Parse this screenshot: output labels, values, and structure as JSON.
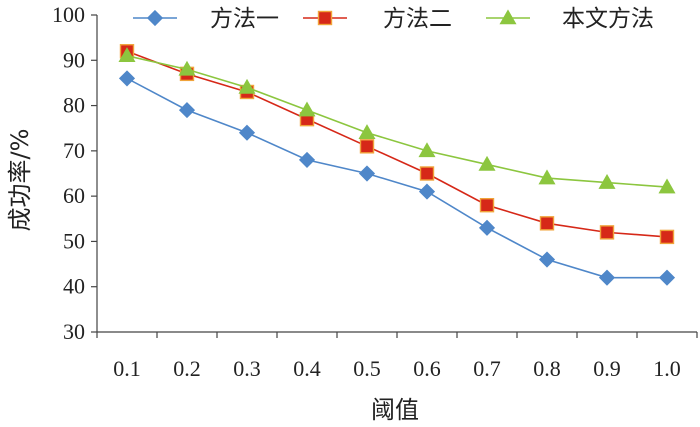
{
  "chart_data": {
    "type": "line",
    "title": "",
    "xlabel": "阈值",
    "ylabel": "成功率/%",
    "x": [
      0.1,
      0.2,
      0.3,
      0.4,
      0.5,
      0.6,
      0.7,
      0.8,
      0.9,
      1.0
    ],
    "x_tick_labels": [
      "0.1",
      "0.2",
      "0.3",
      "0.4",
      "0.5",
      "0.6",
      "0.7",
      "0.8",
      "0.9",
      "1.0"
    ],
    "ylim": [
      30,
      100
    ],
    "y_ticks": [
      30,
      40,
      50,
      60,
      70,
      80,
      90,
      100
    ],
    "grid": false,
    "legend_position": "top",
    "series": [
      {
        "name": "方法一",
        "color": "#4f87c9",
        "marker": "diamond",
        "values": [
          86,
          79,
          74,
          68,
          65,
          61,
          53,
          46,
          42,
          42
        ]
      },
      {
        "name": "方法二",
        "color": "#d62818",
        "marker": "square",
        "values": [
          92,
          87,
          83,
          77,
          71,
          65,
          58,
          54,
          52,
          51
        ]
      },
      {
        "name": "本文方法",
        "color": "#8cc63f",
        "marker": "triangle",
        "values": [
          91,
          88,
          84,
          79,
          74,
          70,
          67,
          64,
          63,
          62
        ]
      }
    ]
  }
}
